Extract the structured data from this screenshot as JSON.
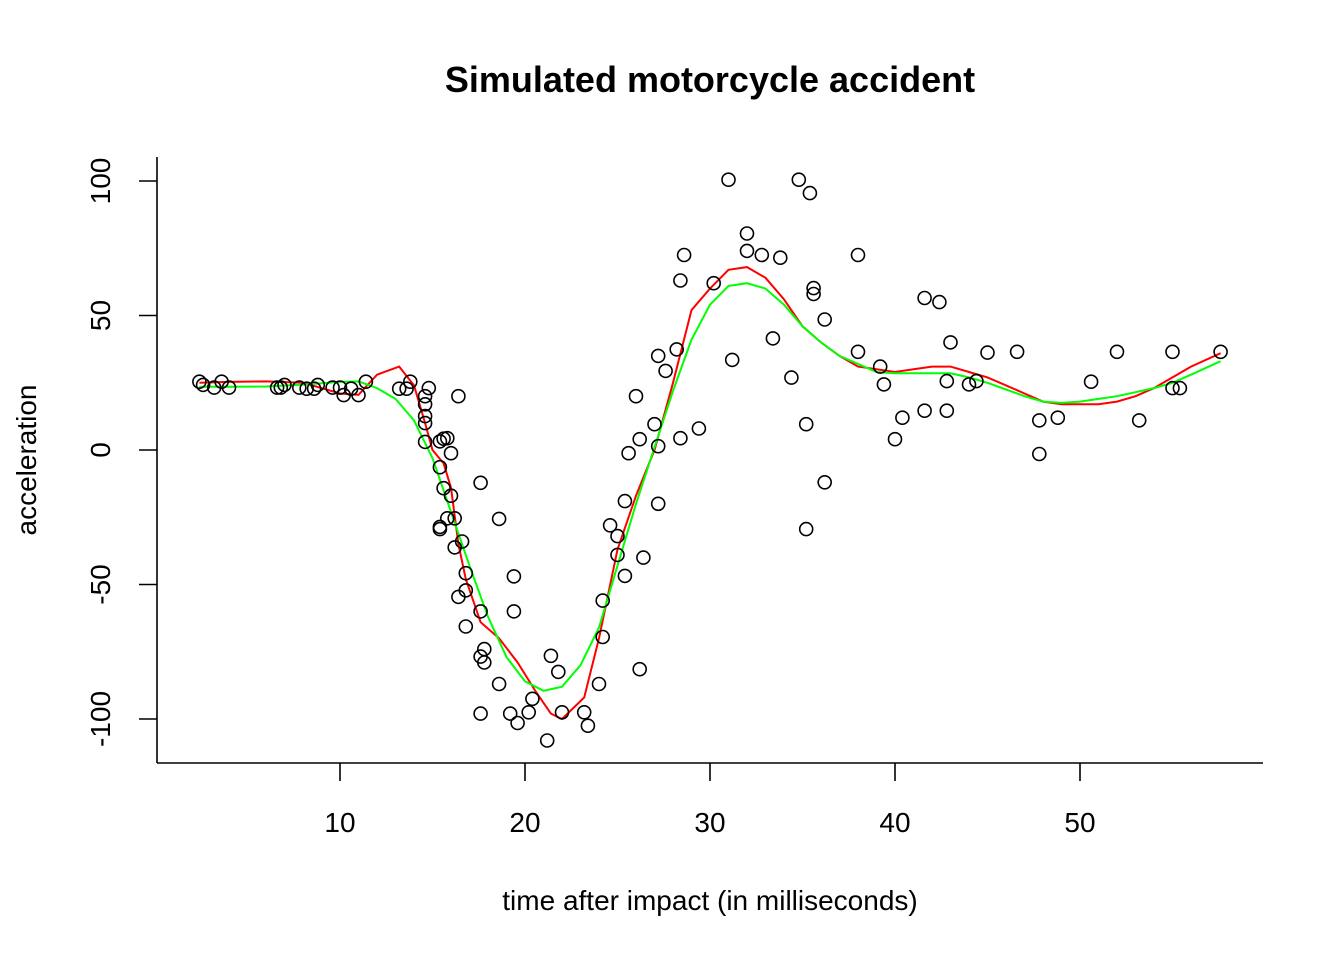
{
  "chart_data": {
    "type": "scatter",
    "title": "Simulated motorcycle accident",
    "xlabel": "time after impact (in milliseconds)",
    "ylabel": "acceleration",
    "xlim": [
      0,
      60
    ],
    "ylim": [
      -116,
      108
    ],
    "xticks": [
      10,
      20,
      30,
      40,
      50
    ],
    "yticks": [
      -100,
      -50,
      0,
      50,
      100
    ],
    "points": [
      [
        2.4,
        25.4
      ],
      [
        2.6,
        24.2
      ],
      [
        3.2,
        23.2
      ],
      [
        3.6,
        25.4
      ],
      [
        4.0,
        23.2
      ],
      [
        6.6,
        23.2
      ],
      [
        6.8,
        23.2
      ],
      [
        7.0,
        24.2
      ],
      [
        7.8,
        23.2
      ],
      [
        8.2,
        22.8
      ],
      [
        8.6,
        22.8
      ],
      [
        8.8,
        24.2
      ],
      [
        9.6,
        23.2
      ],
      [
        10.0,
        23.2
      ],
      [
        10.2,
        20.4
      ],
      [
        10.6,
        22.8
      ],
      [
        11.0,
        20.4
      ],
      [
        11.4,
        25.4
      ],
      [
        13.2,
        22.8
      ],
      [
        13.6,
        22.8
      ],
      [
        13.8,
        25.4
      ],
      [
        14.6,
        3.0
      ],
      [
        14.6,
        20.0
      ],
      [
        14.6,
        17.0
      ],
      [
        14.6,
        12.6
      ],
      [
        14.6,
        10.0
      ],
      [
        14.8,
        23.0
      ],
      [
        15.4,
        3.2
      ],
      [
        15.4,
        -6.4
      ],
      [
        15.4,
        -28.6
      ],
      [
        15.4,
        -29.4
      ],
      [
        15.6,
        -14.2
      ],
      [
        15.6,
        4.2
      ],
      [
        15.8,
        -25.4
      ],
      [
        15.8,
        4.4
      ],
      [
        16.0,
        -17.0
      ],
      [
        16.0,
        -1.2
      ],
      [
        16.2,
        -25.4
      ],
      [
        16.2,
        -36.2
      ],
      [
        16.4,
        -54.6
      ],
      [
        16.4,
        20.0
      ],
      [
        16.6,
        -34.0
      ],
      [
        16.8,
        -65.6
      ],
      [
        16.8,
        -45.8
      ],
      [
        16.8,
        -52.2
      ],
      [
        17.6,
        -12.2
      ],
      [
        17.6,
        -60.0
      ],
      [
        17.6,
        -76.8
      ],
      [
        17.6,
        -98.0
      ],
      [
        17.8,
        -74.0
      ],
      [
        17.8,
        -79.0
      ],
      [
        18.6,
        -25.6
      ],
      [
        18.6,
        -87.0
      ],
      [
        19.2,
        -98.0
      ],
      [
        19.4,
        -47.0
      ],
      [
        19.4,
        -60.0
      ],
      [
        19.6,
        -101.5
      ],
      [
        20.2,
        -97.5
      ],
      [
        20.4,
        -92.5
      ],
      [
        21.2,
        -108.0
      ],
      [
        21.4,
        -76.5
      ],
      [
        21.8,
        -82.5
      ],
      [
        22.0,
        -97.5
      ],
      [
        23.2,
        -97.5
      ],
      [
        23.4,
        -102.5
      ],
      [
        24.0,
        -87.0
      ],
      [
        24.2,
        -69.5
      ],
      [
        24.2,
        -56.0
      ],
      [
        24.6,
        -28.0
      ],
      [
        25.0,
        -39.0
      ],
      [
        25.0,
        -32.0
      ],
      [
        25.4,
        -19.0
      ],
      [
        25.4,
        -46.8
      ],
      [
        25.6,
        -1.2
      ],
      [
        26.0,
        20.0
      ],
      [
        26.2,
        4.0
      ],
      [
        26.2,
        -81.5
      ],
      [
        26.4,
        -40.0
      ],
      [
        27.0,
        9.6
      ],
      [
        27.2,
        1.4
      ],
      [
        27.2,
        35.0
      ],
      [
        27.2,
        -20.0
      ],
      [
        27.6,
        29.4
      ],
      [
        28.2,
        37.4
      ],
      [
        28.4,
        4.4
      ],
      [
        28.4,
        63.0
      ],
      [
        28.6,
        72.5
      ],
      [
        29.4,
        8.0
      ],
      [
        30.2,
        62.0
      ],
      [
        31.0,
        100.5
      ],
      [
        31.2,
        33.5
      ],
      [
        32.0,
        80.5
      ],
      [
        32.0,
        74.0
      ],
      [
        32.8,
        72.5
      ],
      [
        33.4,
        41.5
      ],
      [
        33.8,
        71.5
      ],
      [
        34.4,
        26.9
      ],
      [
        34.8,
        100.5
      ],
      [
        35.2,
        9.6
      ],
      [
        35.2,
        -29.4
      ],
      [
        35.4,
        95.5
      ],
      [
        35.6,
        60.2
      ],
      [
        35.6,
        58.0
      ],
      [
        36.2,
        48.5
      ],
      [
        36.2,
        -12.0
      ],
      [
        38.0,
        72.5
      ],
      [
        38.0,
        36.5
      ],
      [
        39.2,
        31.0
      ],
      [
        39.4,
        24.4
      ],
      [
        40.0,
        4.0
      ],
      [
        40.4,
        12.0
      ],
      [
        41.6,
        56.5
      ],
      [
        41.6,
        14.6
      ],
      [
        42.4,
        55.0
      ],
      [
        42.8,
        25.6
      ],
      [
        42.8,
        14.6
      ],
      [
        43.0,
        40.0
      ],
      [
        44.0,
        24.4
      ],
      [
        44.4,
        25.6
      ],
      [
        45.0,
        36.2
      ],
      [
        46.6,
        36.5
      ],
      [
        47.8,
        11.0
      ],
      [
        47.8,
        -1.5
      ],
      [
        48.8,
        12.0
      ],
      [
        50.6,
        25.4
      ],
      [
        52.0,
        36.5
      ],
      [
        53.2,
        11.0
      ],
      [
        55.0,
        36.5
      ],
      [
        55.0,
        23.0
      ],
      [
        55.4,
        23.0
      ],
      [
        57.6,
        36.5
      ]
    ],
    "series": [
      {
        "color": "#ff0000",
        "x": [
          2.4,
          4,
          6,
          8,
          9,
          10,
          11,
          12,
          13.2,
          14,
          14.6,
          15,
          15.6,
          16,
          16.4,
          16.8,
          17.6,
          18.6,
          19.6,
          20.6,
          21.4,
          22,
          23.2,
          24,
          25,
          26,
          27,
          28,
          29,
          30,
          31,
          32,
          33,
          34,
          35,
          36,
          37,
          38,
          39,
          40,
          41,
          42,
          43,
          44,
          45,
          46,
          47,
          48,
          49,
          50,
          51,
          52,
          53,
          54,
          55,
          56,
          57.6
        ],
        "y": [
          25,
          25.3,
          25.5,
          25,
          23,
          21,
          20.5,
          28,
          31,
          24,
          10,
          0,
          -5,
          -14,
          -35,
          -48,
          -64,
          -70,
          -79,
          -90,
          -98,
          -100,
          -92,
          -70,
          -37,
          -17,
          0,
          25,
          52,
          60,
          67,
          68,
          64,
          56,
          46,
          40,
          35,
          31,
          30,
          29,
          30,
          31,
          31,
          29,
          27,
          24,
          21,
          18,
          17,
          17,
          17,
          18,
          20,
          23,
          27,
          31,
          36
        ]
      },
      {
        "color": "#00ff00",
        "x": [
          2.4,
          4,
          6,
          8,
          10,
          11,
          12,
          13,
          14,
          15,
          16,
          17,
          18,
          19,
          20,
          21,
          22,
          23,
          24,
          25,
          26,
          27,
          28,
          29,
          30,
          31,
          32,
          33,
          34,
          35,
          36,
          37,
          38,
          39,
          40,
          41,
          42,
          43,
          44,
          45,
          46,
          47,
          48,
          49,
          50,
          51,
          52,
          53,
          54,
          55,
          56,
          57.6
        ],
        "y": [
          23.5,
          23.5,
          23.6,
          24.3,
          25.3,
          25.5,
          23,
          19,
          11,
          -3,
          -23,
          -43,
          -62,
          -77,
          -86,
          -89.5,
          -88,
          -80,
          -66,
          -43,
          -20,
          1,
          22,
          41,
          54,
          61,
          62,
          60,
          54,
          46,
          40,
          35,
          32,
          29,
          28.5,
          28.5,
          28.5,
          28.5,
          27,
          25,
          22.5,
          20,
          18,
          17.5,
          18,
          19,
          20,
          21.5,
          23,
          25,
          28,
          33
        ]
      }
    ]
  }
}
